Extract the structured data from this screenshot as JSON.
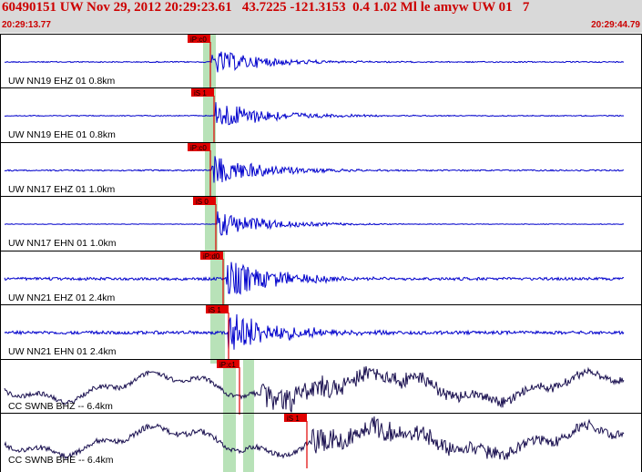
{
  "header": {
    "title": "60490151 UW Nov 29, 2012 20:29:23.61   43.7225 -121.3153  0.4 1.02 Ml le amyw UW 01   7",
    "start_time": "20:29:13.77",
    "end_time": "20:29:44.79"
  },
  "colors": {
    "background": "#ffffff",
    "header_bg": "#d9d9d9",
    "header_text": "#cc0000",
    "trace_local": "#0000cc",
    "trace_cc": "#1a1050",
    "pick_marker": "#e00000",
    "pick_window": "#b8e2b8"
  },
  "channels": [
    {
      "label": "UW NN19 EHZ 01 0.8km",
      "pick": "iP:c0",
      "color": "trace_local"
    },
    {
      "label": "UW NN19 EHE 01 0.8km",
      "pick": "iS 1",
      "color": "trace_local"
    },
    {
      "label": "UW NN17 EHZ 01 1.0km",
      "pick": "iP:c0",
      "color": "trace_local"
    },
    {
      "label": "UW NN17 EHN 01 1.0km",
      "pick": "iS 0",
      "color": "trace_local"
    },
    {
      "label": "UW NN21 EHZ 01 2.4km",
      "pick": "iP:d0",
      "color": "trace_local"
    },
    {
      "label": "UW NN21 EHN 01 2.4km",
      "pick": "iS 1",
      "color": "trace_local"
    },
    {
      "label": "CC SWNB BHZ -- 6.4km",
      "pick": "iP:c1",
      "color": "trace_cc"
    },
    {
      "label": "CC SWNB BHE -- 6.4km",
      "pick": "iS 1",
      "color": "trace_cc"
    }
  ]
}
